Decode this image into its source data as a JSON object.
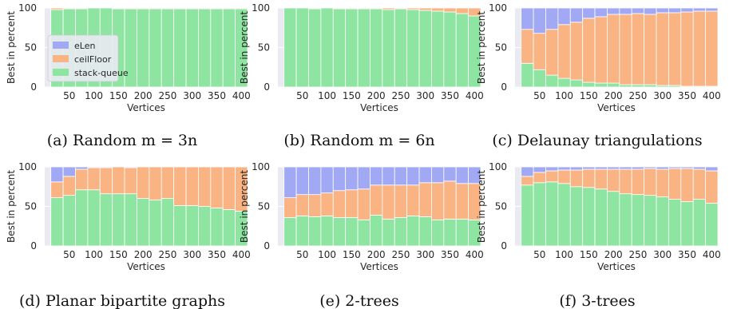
{
  "colors": {
    "eLen": "#a1a9f4",
    "ceilFloor": "#fab383",
    "stack-queue": "#8de5a1",
    "plot_background": "#eaeaf2",
    "grid": "#ffffff"
  },
  "legend": {
    "entries": [
      "eLen",
      "ceilFloor",
      "stack-queue"
    ],
    "placement": "center-left, panel (a)"
  },
  "chart_data": [
    {
      "id": "a",
      "type": "bar",
      "stacked": true,
      "caption": "(a) Random m = 3n",
      "xlabel": "Vertices",
      "ylabel": "Best in percent",
      "ylim": [
        0,
        100
      ],
      "xticks": [
        "50",
        "100",
        "150",
        "200",
        "250",
        "300",
        "350",
        "400"
      ],
      "yticks": [
        "0",
        "50",
        "100"
      ],
      "grid": true,
      "show_legend": true,
      "categories": [
        25,
        50,
        75,
        100,
        125,
        150,
        175,
        200,
        225,
        250,
        275,
        300,
        325,
        350,
        375,
        400
      ],
      "series": [
        {
          "name": "stack-queue",
          "values": [
            98,
            99,
            99,
            100,
            100,
            99,
            99,
            99,
            99,
            99,
            99,
            99,
            99,
            99,
            99,
            99
          ]
        },
        {
          "name": "ceilFloor",
          "values": [
            2,
            1,
            1,
            0,
            0,
            1,
            1,
            1,
            1,
            1,
            1,
            1,
            1,
            1,
            1,
            1
          ]
        },
        {
          "name": "eLen",
          "values": [
            0,
            0,
            0,
            0,
            0,
            0,
            0,
            0,
            0,
            0,
            0,
            0,
            0,
            0,
            0,
            0
          ]
        }
      ]
    },
    {
      "id": "b",
      "type": "bar",
      "stacked": true,
      "caption": "(b) Random m = 6n",
      "xlabel": "Vertices",
      "ylabel": "Best in percent",
      "ylim": [
        0,
        100
      ],
      "xticks": [
        "50",
        "100",
        "150",
        "200",
        "250",
        "300",
        "350",
        "400"
      ],
      "yticks": [
        "0",
        "50",
        "100"
      ],
      "grid": true,
      "show_legend": false,
      "categories": [
        25,
        50,
        75,
        100,
        125,
        150,
        175,
        200,
        225,
        250,
        275,
        300,
        325,
        350,
        375,
        400
      ],
      "series": [
        {
          "name": "stack-queue",
          "values": [
            100,
            100,
            99,
            100,
            99,
            99,
            99,
            99,
            98,
            99,
            98,
            97,
            96,
            95,
            93,
            90
          ]
        },
        {
          "name": "ceilFloor",
          "values": [
            0,
            0,
            1,
            0,
            1,
            1,
            1,
            1,
            2,
            1,
            2,
            3,
            4,
            5,
            7,
            10
          ]
        },
        {
          "name": "eLen",
          "values": [
            0,
            0,
            0,
            0,
            0,
            0,
            0,
            0,
            0,
            0,
            0,
            0,
            0,
            0,
            0,
            0
          ]
        }
      ]
    },
    {
      "id": "c",
      "type": "bar",
      "stacked": true,
      "caption": "(c) Delaunay triangulations",
      "xlabel": "Vertices",
      "ylabel": "Best in percent",
      "ylim": [
        0,
        100
      ],
      "xticks": [
        "50",
        "100",
        "150",
        "200",
        "250",
        "300",
        "350",
        "400"
      ],
      "yticks": [
        "0",
        "50",
        "100"
      ],
      "grid": true,
      "show_legend": false,
      "categories": [
        25,
        50,
        75,
        100,
        125,
        150,
        175,
        200,
        225,
        250,
        275,
        300,
        325,
        350,
        375,
        400
      ],
      "series": [
        {
          "name": "stack-queue",
          "values": [
            30,
            22,
            15,
            11,
            9,
            6,
            5,
            5,
            3,
            3,
            3,
            2,
            2,
            1,
            1,
            1
          ]
        },
        {
          "name": "ceilFloor",
          "values": [
            43,
            46,
            58,
            68,
            73,
            81,
            84,
            87,
            89,
            90,
            89,
            92,
            92,
            94,
            95,
            95
          ]
        },
        {
          "name": "eLen",
          "values": [
            27,
            32,
            27,
            21,
            18,
            13,
            11,
            8,
            8,
            7,
            8,
            6,
            6,
            5,
            4,
            4
          ]
        }
      ]
    },
    {
      "id": "d",
      "type": "bar",
      "stacked": true,
      "caption": "(d) Planar bipartite graphs",
      "xlabel": "Vertices",
      "ylabel": "Best in percent",
      "ylim": [
        0,
        100
      ],
      "xticks": [
        "50",
        "100",
        "150",
        "200",
        "250",
        "300",
        "350",
        "400"
      ],
      "yticks": [
        "0",
        "50",
        "100"
      ],
      "grid": true,
      "show_legend": false,
      "categories": [
        25,
        50,
        75,
        100,
        125,
        150,
        175,
        200,
        225,
        250,
        275,
        300,
        325,
        350,
        375,
        400
      ],
      "series": [
        {
          "name": "stack-queue",
          "values": [
            61,
            64,
            71,
            71,
            66,
            66,
            66,
            60,
            58,
            60,
            51,
            51,
            50,
            48,
            46,
            44
          ]
        },
        {
          "name": "ceilFloor",
          "values": [
            20,
            24,
            26,
            28,
            33,
            34,
            33,
            40,
            42,
            40,
            49,
            49,
            50,
            52,
            54,
            56
          ]
        },
        {
          "name": "eLen",
          "values": [
            19,
            12,
            3,
            1,
            1,
            0,
            1,
            0,
            0,
            0,
            0,
            0,
            0,
            0,
            0,
            0
          ]
        }
      ]
    },
    {
      "id": "e",
      "type": "bar",
      "stacked": true,
      "caption": "(e) 2-trees",
      "xlabel": "Vertices",
      "ylabel": "Best in percent",
      "ylim": [
        0,
        100
      ],
      "xticks": [
        "50",
        "100",
        "150",
        "200",
        "250",
        "300",
        "350",
        "400"
      ],
      "yticks": [
        "0",
        "50",
        "100"
      ],
      "grid": true,
      "show_legend": false,
      "categories": [
        25,
        50,
        75,
        100,
        125,
        150,
        175,
        200,
        225,
        250,
        275,
        300,
        325,
        350,
        375,
        400
      ],
      "series": [
        {
          "name": "stack-queue",
          "values": [
            36,
            38,
            37,
            38,
            36,
            36,
            33,
            39,
            34,
            36,
            38,
            37,
            33,
            34,
            34,
            33
          ]
        },
        {
          "name": "ceilFloor",
          "values": [
            25,
            27,
            28,
            29,
            34,
            35,
            39,
            38,
            43,
            41,
            39,
            43,
            47,
            48,
            45,
            46
          ]
        },
        {
          "name": "eLen",
          "values": [
            39,
            35,
            35,
            33,
            30,
            29,
            28,
            23,
            23,
            23,
            23,
            20,
            20,
            18,
            21,
            21
          ]
        }
      ]
    },
    {
      "id": "f",
      "type": "bar",
      "stacked": true,
      "caption": "(f) 3-trees",
      "xlabel": "Vertices",
      "ylabel": "Best in percent",
      "ylim": [
        0,
        100
      ],
      "xticks": [
        "50",
        "100",
        "150",
        "200",
        "250",
        "300",
        "350",
        "400"
      ],
      "yticks": [
        "0",
        "50",
        "100"
      ],
      "grid": true,
      "show_legend": false,
      "categories": [
        25,
        50,
        75,
        100,
        125,
        150,
        175,
        200,
        225,
        250,
        275,
        300,
        325,
        350,
        375,
        400
      ],
      "series": [
        {
          "name": "stack-queue",
          "values": [
            77,
            80,
            81,
            79,
            75,
            74,
            72,
            69,
            66,
            65,
            64,
            62,
            59,
            56,
            59,
            54
          ]
        },
        {
          "name": "ceilFloor",
          "values": [
            11,
            13,
            14,
            17,
            21,
            23,
            25,
            28,
            31,
            32,
            34,
            35,
            39,
            42,
            38,
            41
          ]
        },
        {
          "name": "eLen",
          "values": [
            12,
            7,
            5,
            4,
            4,
            3,
            3,
            3,
            3,
            3,
            2,
            3,
            2,
            2,
            3,
            5
          ]
        }
      ]
    }
  ]
}
